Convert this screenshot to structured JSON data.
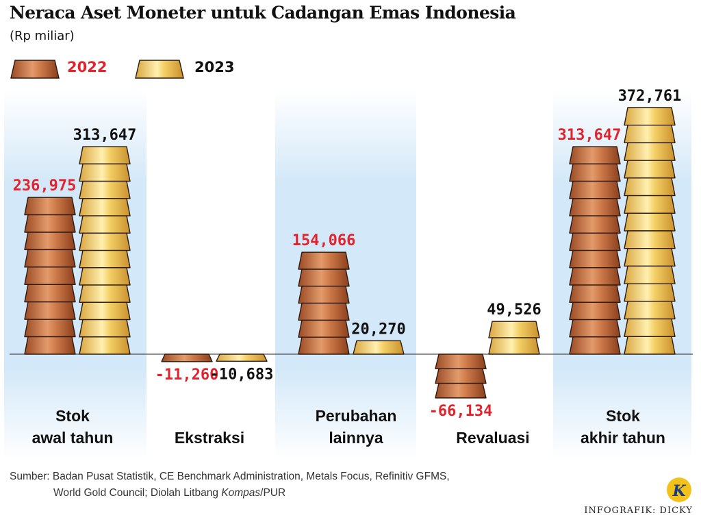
{
  "header": {
    "title": "Neraca Aset Moneter untuk Cadangan Emas Indonesia",
    "subtitle": "(Rp miliar)"
  },
  "colors": {
    "y2022_label": "#e1232d",
    "y2023_label": "#111111",
    "copper_mid": "#c8703f",
    "gold_mid": "#f6d56e",
    "panel_blue": "#d5e9f8"
  },
  "chart_data": {
    "type": "bar",
    "title": "Neraca Aset Moneter untuk Cadangan Emas Indonesia",
    "subtitle": "(Rp miliar)",
    "categories": [
      "Stok awal tahun",
      "Ekstraksi",
      "Perubahan lainnya",
      "Revaluasi",
      "Stok akhir tahun"
    ],
    "category_lines": [
      [
        "Stok",
        "awal tahun"
      ],
      [
        "Ekstraksi"
      ],
      [
        "Perubahan",
        "lainnya"
      ],
      [
        "Revaluasi"
      ],
      [
        "Stok",
        "akhir tahun"
      ]
    ],
    "series": [
      {
        "name": "2022",
        "values": [
          236975,
          -11260,
          154066,
          -66134,
          313647
        ],
        "labels": [
          "236,975",
          "-11,260",
          "154,066",
          "-66,134",
          "313,647"
        ]
      },
      {
        "name": "2023",
        "values": [
          313647,
          -10683,
          20270,
          49526,
          372761
        ],
        "labels": [
          "313,647",
          "-10,683",
          "20,270",
          "49,526",
          "372,761"
        ]
      }
    ],
    "legend": "top-left",
    "grid": false
  },
  "source": {
    "line1": "Sumber: Badan Pusat Statistik, CE Benchmark Administration, Metals Focus, Refinitiv GFMS,",
    "line2_prefix": "World Gold Council; Diolah Litbang ",
    "line2_italic": "Kompas",
    "line2_suffix": "/PUR"
  },
  "credit": "INFOGRAFIK: DICKY",
  "logo_letter": "K"
}
